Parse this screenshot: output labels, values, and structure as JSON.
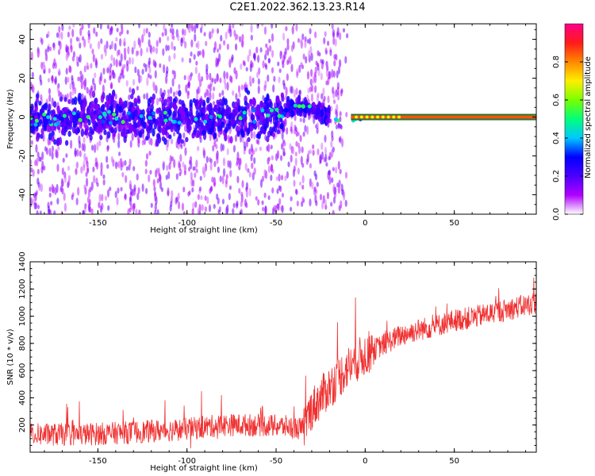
{
  "title": "C2E1.2022.362.13.23.R14",
  "chart_data": [
    {
      "type": "heatmap",
      "xlabel": "Height of straight line (km)",
      "ylabel": "Frequency (Hz)",
      "xlim": [
        -188,
        96
      ],
      "ylim": [
        -50,
        48
      ],
      "x_ticks": [
        -150,
        -100,
        -50,
        0,
        50
      ],
      "y_ticks": [
        -40,
        -20,
        0,
        20,
        40
      ],
      "colorbar": {
        "label": "Normalized spectral amplitude",
        "range": [
          0.0,
          1.0
        ],
        "ticks": [
          0.0,
          0.2,
          0.4,
          0.6,
          0.8
        ],
        "colors": [
          "#ffffff",
          "#b000ff",
          "#4b00ff",
          "#0000ff",
          "#00c8ff",
          "#00ff7a",
          "#7aff00",
          "#ffee00",
          "#ff8800",
          "#ff1a1a",
          "#ff0088"
        ]
      },
      "signal_track": [
        {
          "x": -188,
          "y": -2
        },
        {
          "x": -150,
          "y": 0
        },
        {
          "x": -100,
          "y": -1
        },
        {
          "x": -50,
          "y": 1
        },
        {
          "x": -40,
          "y": 6
        },
        {
          "x": -30,
          "y": 5
        },
        {
          "x": -22,
          "y": 1
        },
        {
          "x": -15,
          "y": -2
        },
        {
          "x": -8,
          "y": -2
        },
        {
          "x": 0,
          "y": 0
        },
        {
          "x": 5,
          "y": 0
        },
        {
          "x": 10,
          "y": 0
        },
        {
          "x": 50,
          "y": 0
        },
        {
          "x": 96,
          "y": 0
        }
      ],
      "noise_band": {
        "x_range": [
          -188,
          -20
        ],
        "y_spread": 8
      },
      "grid": false
    },
    {
      "type": "line",
      "xlabel": "Height of straight line (km)",
      "ylabel": "SNR (10 * v/v)",
      "xlim": [
        -188,
        96
      ],
      "ylim": [
        0,
        1400
      ],
      "x_ticks": [
        -150,
        -100,
        -50,
        0,
        50
      ],
      "y_ticks": [
        200,
        400,
        600,
        800,
        1000,
        1200,
        1400
      ],
      "series": [
        {
          "color": "#f03030",
          "x": [
            -188,
            -160,
            -140,
            -120,
            -100,
            -80,
            -60,
            -45,
            -35,
            -30,
            -20,
            -10,
            0,
            10,
            20,
            30,
            40,
            50,
            60,
            70,
            80,
            90,
            96
          ],
          "y": [
            130,
            130,
            140,
            155,
            170,
            200,
            200,
            190,
            170,
            320,
            480,
            620,
            720,
            790,
            860,
            900,
            930,
            970,
            990,
            1020,
            1050,
            1080,
            1100
          ],
          "noise_amplitude": 140
        }
      ],
      "grid": false
    }
  ]
}
